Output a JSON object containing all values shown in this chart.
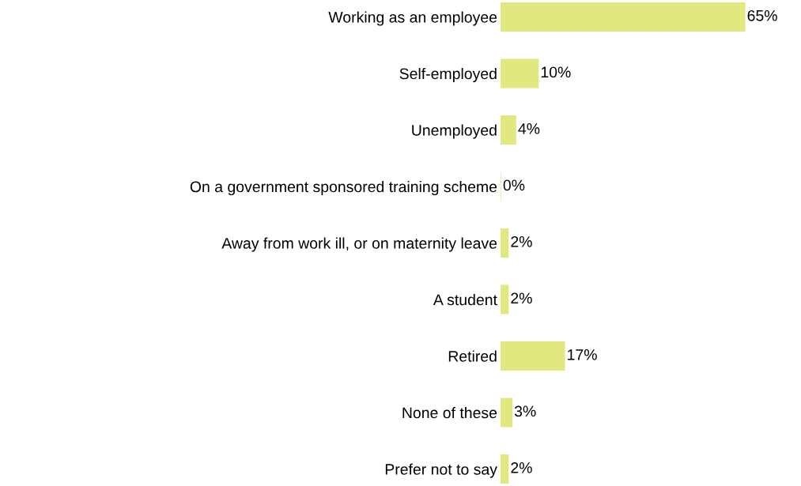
{
  "chart_data": {
    "type": "bar",
    "orientation": "horizontal",
    "categories": [
      "Working as an employee",
      "Self-employed",
      "Unemployed",
      "On a government sponsored training scheme",
      "Away from work ill, or on maternity leave",
      "A student",
      "Retired",
      "None of these",
      "Prefer not to say"
    ],
    "values": [
      65,
      10,
      4,
      0,
      2,
      2,
      17,
      3,
      2
    ],
    "value_labels": [
      "65%",
      "10%",
      "4%",
      "0%",
      "2%",
      "2%",
      "17%",
      "3%",
      "2%"
    ],
    "color": "#e1e87f"
  }
}
